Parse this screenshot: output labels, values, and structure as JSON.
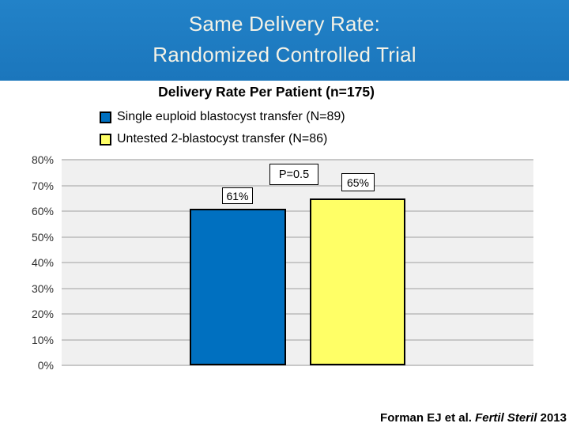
{
  "slide": {
    "title_line1": "Same Delivery Rate:",
    "title_line2": "Randomized Controlled Trial",
    "citation": {
      "authors": "Forman EJ et al.",
      "journal": " Fertil Steril ",
      "year": "2013"
    }
  },
  "chart_data": {
    "type": "bar",
    "title": "Delivery Rate Per Patient (n=175)",
    "categories": [
      "Single euploid blastocyst transfer (N=89)",
      "Untested 2-blastocyst transfer (N=86)"
    ],
    "values": [
      61,
      65
    ],
    "value_labels": [
      "61%",
      "65%"
    ],
    "annotation": "P=0.5",
    "ylim": [
      0,
      80
    ],
    "ytick_labels": [
      "80%",
      "70%",
      "60%",
      "50%",
      "40%",
      "30%",
      "20%",
      "10%",
      "0%"
    ],
    "grid": true,
    "legend_position": "top-left",
    "legend": [
      {
        "label": "Single euploid blastocyst transfer (N=89)",
        "color": "#0070C0"
      },
      {
        "label": "Untested 2-blastocyst transfer (N=86)",
        "color": "#FFFF66"
      }
    ]
  },
  "colors": {
    "banner_background": "#1B76BC",
    "banner_text": "#F4F2E6",
    "plot_background": "#F0F0F0",
    "gridline": "#C8C8C8",
    "bar_border": "#000000",
    "bar1_fill": "#0070C0",
    "bar2_fill": "#FFFF66",
    "text": "#000000"
  }
}
